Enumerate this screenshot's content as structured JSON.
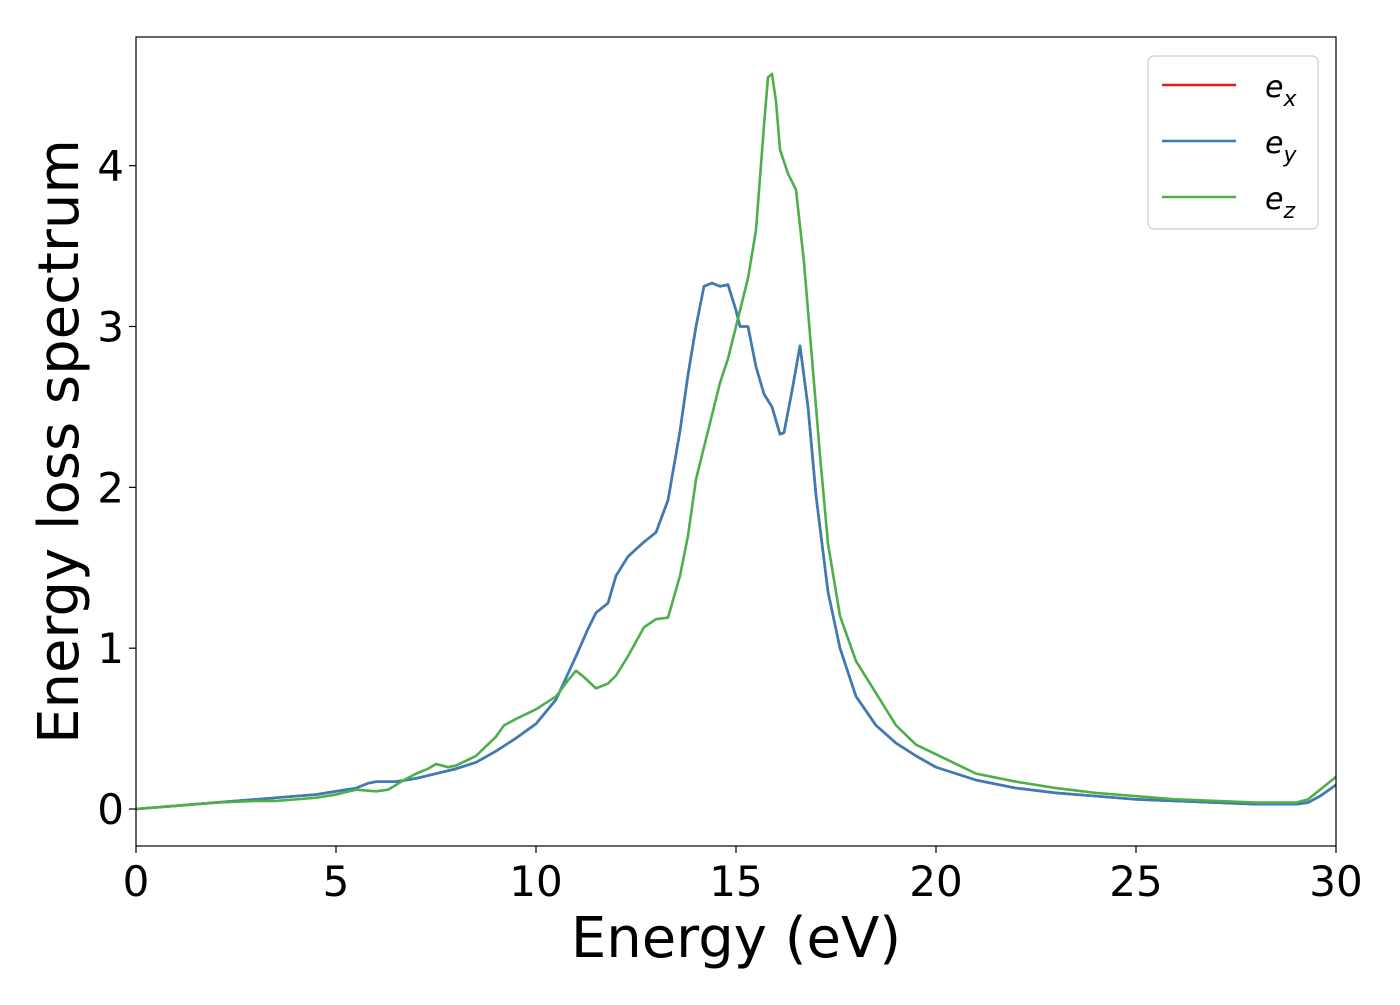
{
  "chart_data": {
    "type": "line",
    "xlabel": "Energy (eV)",
    "ylabel": "Energy loss spectrum",
    "xlim": [
      0,
      30
    ],
    "ylim": [
      -0.23,
      4.8
    ],
    "xticks": [
      "0",
      "5",
      "10",
      "15",
      "20",
      "25",
      "30"
    ],
    "yticks": [
      "0",
      "1",
      "2",
      "3",
      "4"
    ],
    "grid": false,
    "legend_position": "top-right",
    "legend": [
      {
        "base": "e",
        "sub": "x",
        "color": "#e41a1c"
      },
      {
        "base": "e",
        "sub": "y",
        "color": "#377eb8"
      },
      {
        "base": "e",
        "sub": "z",
        "color": "#4daf4a"
      }
    ],
    "series": [
      {
        "name": "e_x",
        "color": "#e41a1c",
        "x": [
          0,
          1,
          2,
          3,
          3.5,
          4,
          4.5,
          5,
          5.5,
          5.8,
          6,
          6.5,
          7,
          7.5,
          8,
          8.5,
          9,
          9.5,
          10,
          10.5,
          11,
          11.3,
          11.5,
          11.8,
          12,
          12.3,
          12.7,
          13,
          13.3,
          13.6,
          13.8,
          14,
          14.2,
          14.4,
          14.6,
          14.8,
          15,
          15.1,
          15.3,
          15.5,
          15.7,
          15.9,
          16.1,
          16.2,
          16.4,
          16.6,
          16.8,
          17,
          17.3,
          17.6,
          18,
          18.5,
          19,
          19.5,
          20,
          21,
          22,
          23,
          24,
          25,
          26,
          27,
          28,
          29,
          29.3,
          29.6,
          30
        ],
        "y": [
          0.0,
          0.02,
          0.04,
          0.06,
          0.07,
          0.08,
          0.09,
          0.11,
          0.13,
          0.16,
          0.17,
          0.17,
          0.19,
          0.22,
          0.25,
          0.29,
          0.36,
          0.44,
          0.53,
          0.68,
          0.95,
          1.12,
          1.22,
          1.28,
          1.45,
          1.57,
          1.66,
          1.72,
          1.92,
          2.35,
          2.7,
          3.0,
          3.25,
          3.27,
          3.25,
          3.26,
          3.1,
          3.0,
          3.0,
          2.75,
          2.58,
          2.5,
          2.33,
          2.34,
          2.6,
          2.88,
          2.5,
          1.95,
          1.35,
          1.0,
          0.7,
          0.52,
          0.41,
          0.33,
          0.26,
          0.18,
          0.13,
          0.1,
          0.08,
          0.06,
          0.05,
          0.04,
          0.03,
          0.03,
          0.04,
          0.08,
          0.15
        ]
      },
      {
        "name": "e_y",
        "color": "#377eb8",
        "x": [
          0,
          1,
          2,
          3,
          3.5,
          4,
          4.5,
          5,
          5.5,
          5.8,
          6,
          6.5,
          7,
          7.5,
          8,
          8.5,
          9,
          9.5,
          10,
          10.5,
          11,
          11.3,
          11.5,
          11.8,
          12,
          12.3,
          12.7,
          13,
          13.3,
          13.6,
          13.8,
          14,
          14.2,
          14.4,
          14.6,
          14.8,
          15,
          15.1,
          15.3,
          15.5,
          15.7,
          15.9,
          16.1,
          16.2,
          16.4,
          16.6,
          16.8,
          17,
          17.3,
          17.6,
          18,
          18.5,
          19,
          19.5,
          20,
          21,
          22,
          23,
          24,
          25,
          26,
          27,
          28,
          29,
          29.3,
          29.6,
          30
        ],
        "y": [
          0.0,
          0.02,
          0.04,
          0.06,
          0.07,
          0.08,
          0.09,
          0.11,
          0.13,
          0.16,
          0.17,
          0.17,
          0.19,
          0.22,
          0.25,
          0.29,
          0.36,
          0.44,
          0.53,
          0.68,
          0.95,
          1.12,
          1.22,
          1.28,
          1.45,
          1.57,
          1.66,
          1.72,
          1.92,
          2.35,
          2.7,
          3.0,
          3.25,
          3.27,
          3.25,
          3.26,
          3.1,
          3.0,
          3.0,
          2.75,
          2.58,
          2.5,
          2.33,
          2.34,
          2.6,
          2.88,
          2.5,
          1.95,
          1.35,
          1.0,
          0.7,
          0.52,
          0.41,
          0.33,
          0.26,
          0.18,
          0.13,
          0.1,
          0.08,
          0.06,
          0.05,
          0.04,
          0.03,
          0.03,
          0.04,
          0.08,
          0.15
        ]
      },
      {
        "name": "e_z",
        "color": "#4daf4a",
        "x": [
          0,
          1,
          2,
          3,
          3.5,
          4,
          4.5,
          5,
          5.5,
          6,
          6.3,
          6.7,
          7,
          7.3,
          7.5,
          7.8,
          8,
          8.5,
          9,
          9.2,
          9.5,
          10,
          10.5,
          10.8,
          11,
          11.2,
          11.5,
          11.8,
          12,
          12.3,
          12.7,
          13,
          13.3,
          13.6,
          13.8,
          14,
          14.3,
          14.6,
          14.8,
          15,
          15.3,
          15.5,
          15.7,
          15.8,
          15.9,
          16,
          16.1,
          16.3,
          16.5,
          16.7,
          16.9,
          17.1,
          17.3,
          17.6,
          18,
          18.5,
          19,
          19.5,
          20,
          20.5,
          21,
          22,
          23,
          24,
          25,
          26,
          27,
          28,
          29,
          29.3,
          29.6,
          30
        ],
        "y": [
          0.0,
          0.02,
          0.04,
          0.05,
          0.05,
          0.06,
          0.07,
          0.09,
          0.12,
          0.11,
          0.12,
          0.18,
          0.22,
          0.25,
          0.28,
          0.26,
          0.27,
          0.33,
          0.45,
          0.52,
          0.56,
          0.62,
          0.7,
          0.8,
          0.86,
          0.82,
          0.75,
          0.78,
          0.83,
          0.95,
          1.13,
          1.18,
          1.19,
          1.45,
          1.7,
          2.05,
          2.35,
          2.65,
          2.8,
          3.0,
          3.3,
          3.6,
          4.25,
          4.55,
          4.57,
          4.4,
          4.1,
          3.95,
          3.85,
          3.4,
          2.8,
          2.2,
          1.65,
          1.2,
          0.92,
          0.72,
          0.52,
          0.4,
          0.34,
          0.28,
          0.22,
          0.17,
          0.13,
          0.1,
          0.08,
          0.06,
          0.05,
          0.04,
          0.04,
          0.06,
          0.12,
          0.2
        ]
      }
    ]
  }
}
